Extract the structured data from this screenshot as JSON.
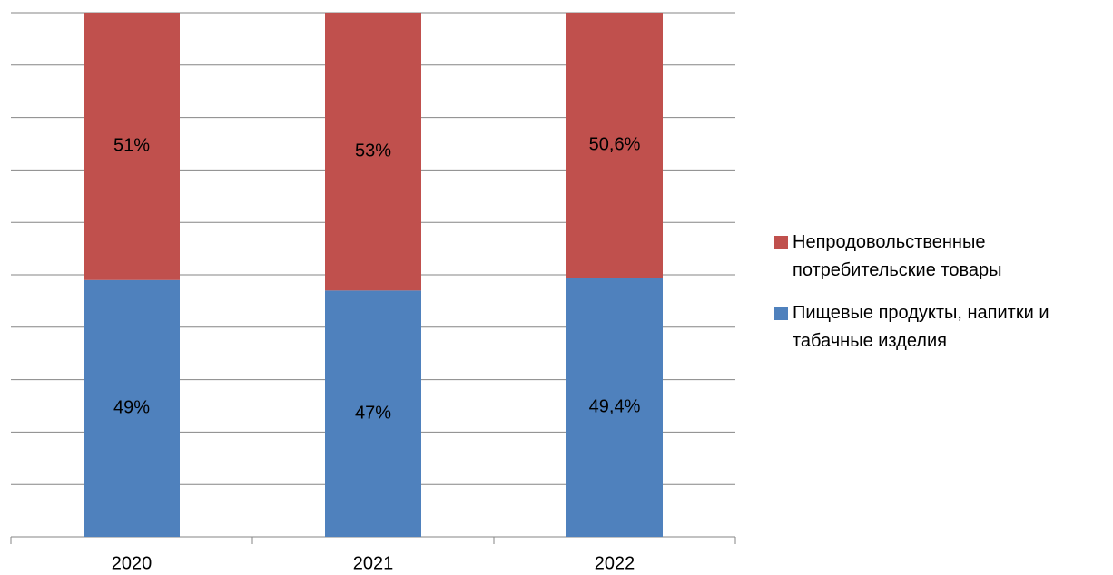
{
  "chart_data": {
    "type": "stacked_bar",
    "categories": [
      "2020",
      "2021",
      "2022"
    ],
    "series": [
      {
        "name": "Пищевые продукты, напитки и табачные изделия",
        "color": "#4f81bd",
        "values": [
          49,
          47,
          49.4
        ],
        "value_labels": [
          "49%",
          "47%",
          "49,4%"
        ]
      },
      {
        "name": "Непродовольственные потребительские товары",
        "color": "#c0504d",
        "values": [
          51,
          53,
          50.6
        ],
        "value_labels": [
          "51%",
          "53%",
          "50,6%"
        ]
      }
    ],
    "ylim": [
      0,
      100
    ],
    "yticks": [
      0,
      10,
      20,
      30,
      40,
      50,
      60,
      70,
      80,
      90,
      100
    ],
    "grid": true
  }
}
